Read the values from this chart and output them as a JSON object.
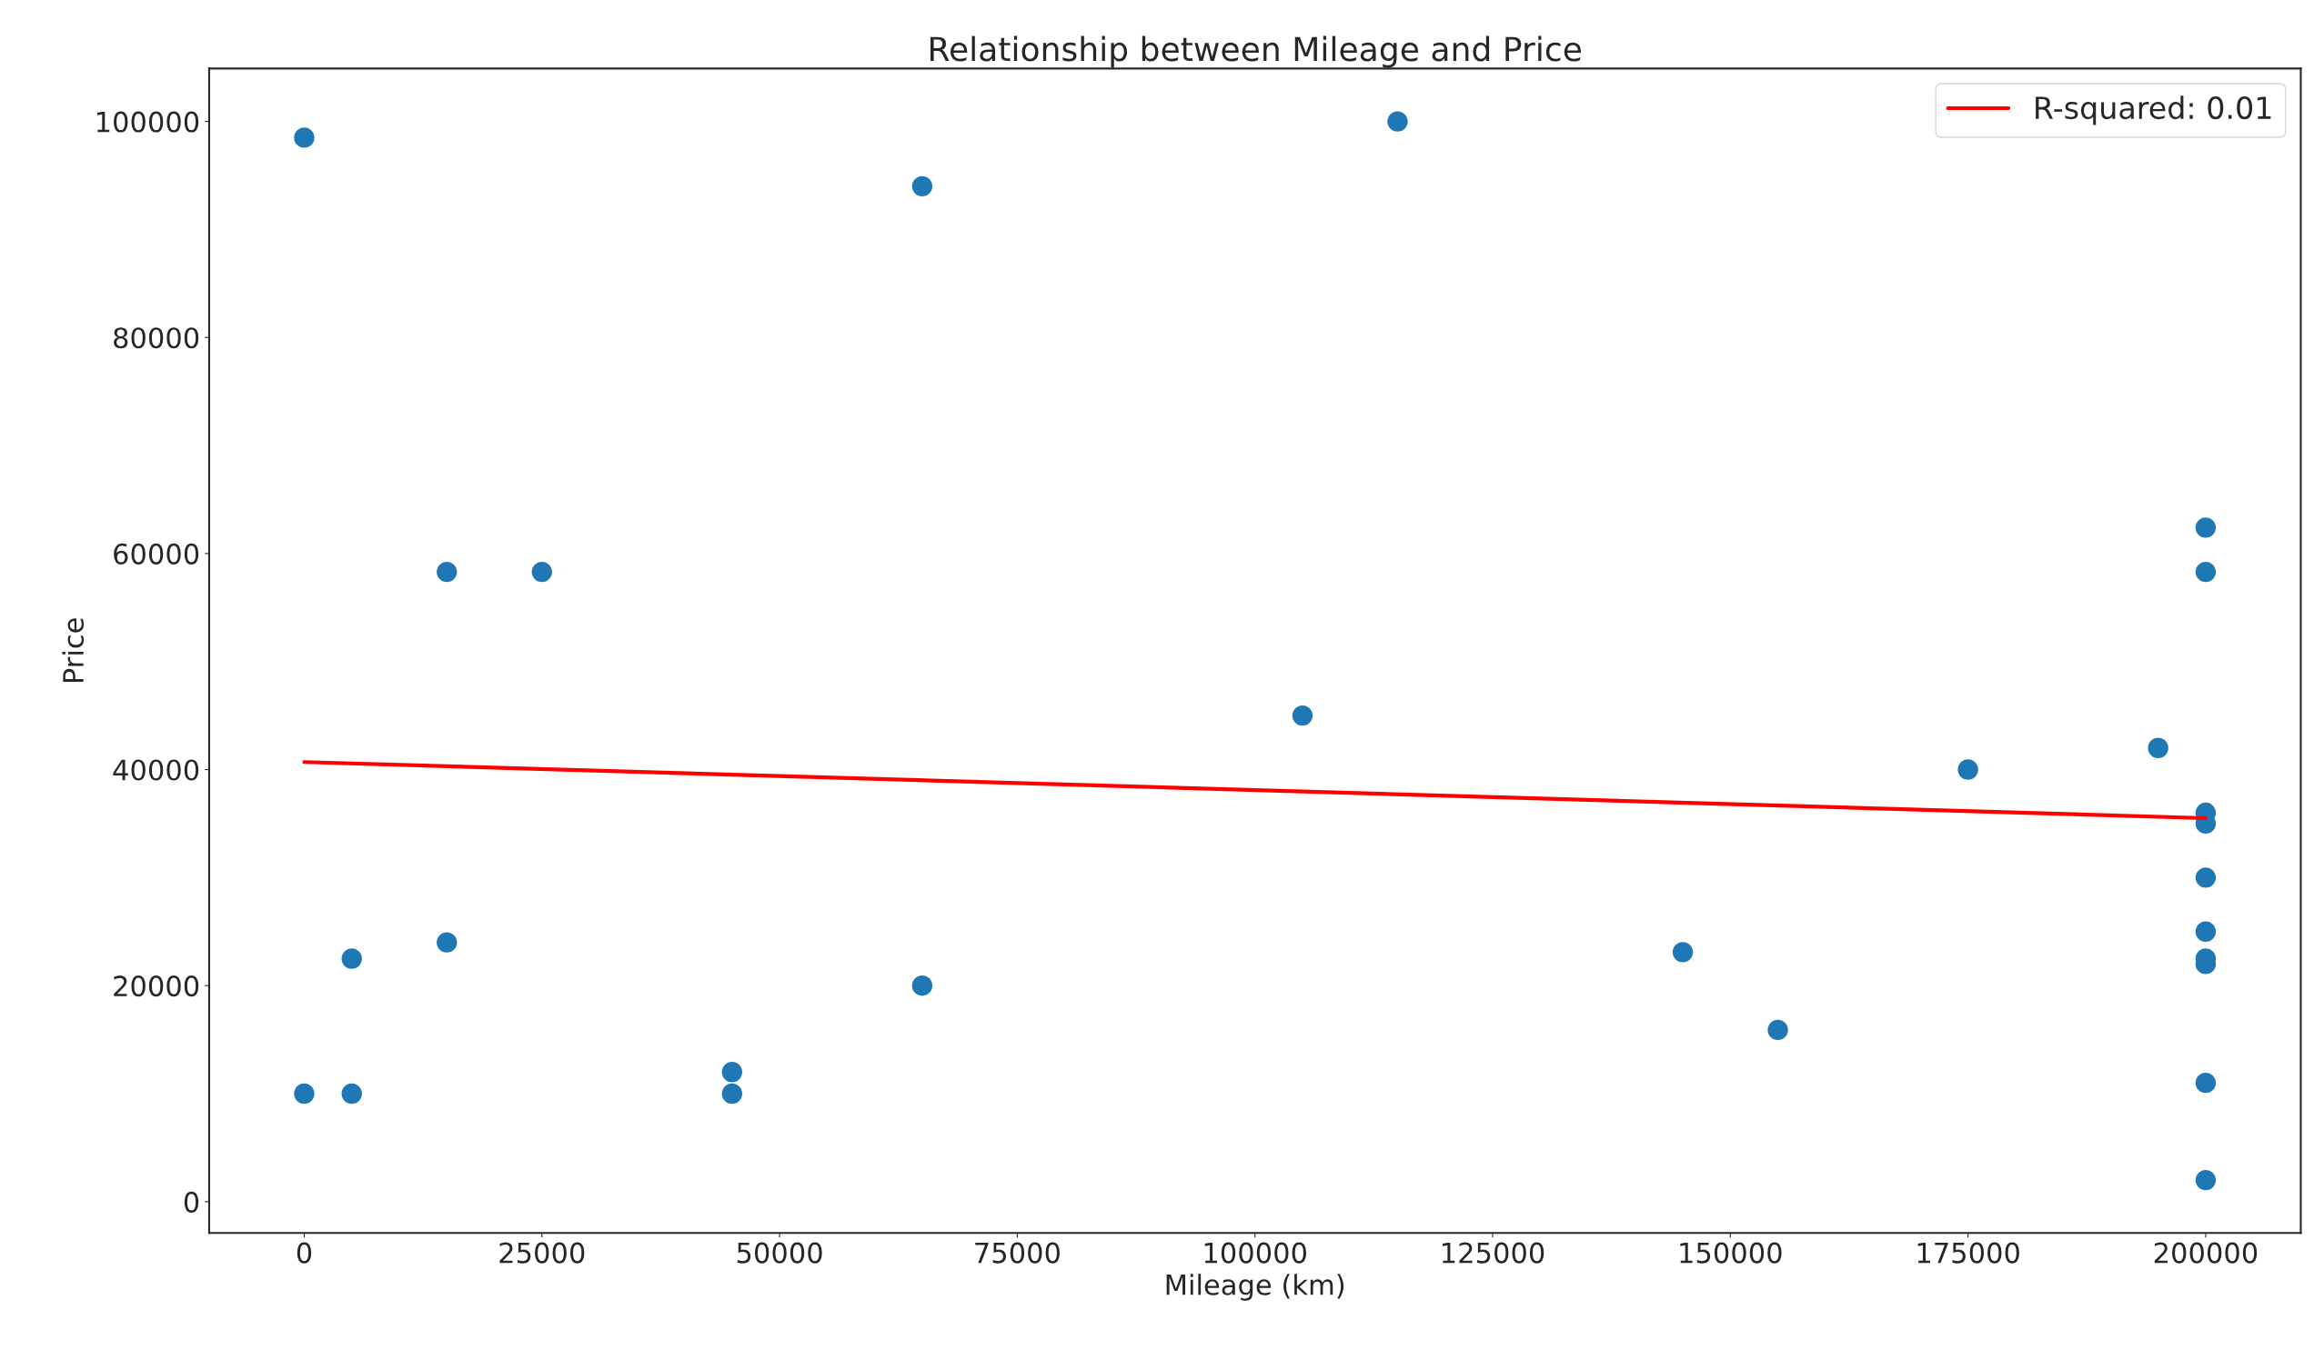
{
  "chart_data": {
    "type": "scatter",
    "title": "Relationship between Mileage and Price",
    "xlabel": "Mileage (km)",
    "ylabel": "Price",
    "xlim": [
      -10000,
      210000
    ],
    "xticks": [
      0,
      25000,
      50000,
      75000,
      100000,
      125000,
      150000,
      175000,
      200000
    ],
    "ylim": [
      -2900,
      104900
    ],
    "yticks": [
      0,
      20000,
      40000,
      60000,
      80000,
      100000
    ],
    "grid": false,
    "legend": "top right",
    "series": [
      {
        "marker": "circle",
        "color": "#1f77b4",
        "x": [
          0,
          0,
          5000,
          5000,
          15000,
          15000,
          25000,
          45000,
          45000,
          65000,
          65000,
          105000,
          115000,
          145000,
          155000,
          175000,
          195000,
          200000,
          200000,
          200000,
          200000,
          200000,
          200000,
          200000,
          200000,
          200000,
          200000
        ],
        "values": [
          98500,
          10000,
          22500,
          10000,
          58300,
          24000,
          58300,
          12000,
          10000,
          94000,
          20000,
          45000,
          100000,
          23100,
          15900,
          40000,
          42000,
          62400,
          58300,
          36000,
          35000,
          30000,
          25000,
          22500,
          22000,
          11000,
          2000
        ]
      },
      {
        "type": "line",
        "marker": "none",
        "name": "R-squared: 0.01",
        "color": "#ff0000",
        "x": [
          0,
          200000
        ],
        "values": [
          40700,
          35500
        ]
      }
    ]
  }
}
